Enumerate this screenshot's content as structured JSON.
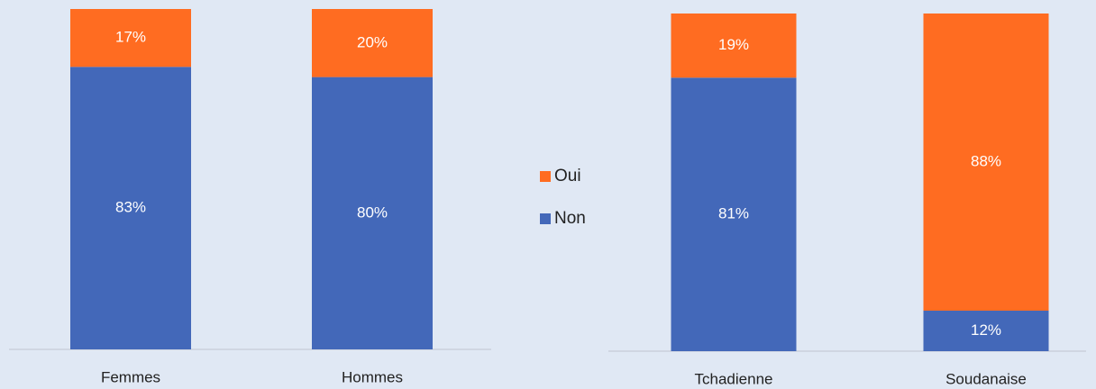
{
  "chart_data": [
    {
      "type": "bar",
      "stacked": true,
      "ylim": [
        0,
        100
      ],
      "legend": "right",
      "categories": [
        "Femmes",
        "Hommes"
      ],
      "series": [
        {
          "name": "Non",
          "color": "#4368b9",
          "values": [
            83,
            80
          ],
          "value_labels": [
            "83%",
            "80%"
          ]
        },
        {
          "name": "Oui",
          "color": "#ff6c21",
          "values": [
            17,
            20
          ],
          "value_labels": [
            "17%",
            "20%"
          ]
        }
      ]
    },
    {
      "type": "bar",
      "stacked": true,
      "ylim": [
        0,
        100
      ],
      "categories": [
        "Tchadienne",
        "Soudanaise"
      ],
      "series": [
        {
          "name": "Non",
          "color": "#4368b9",
          "values": [
            81,
            12
          ],
          "value_labels": [
            "81%",
            "12%"
          ]
        },
        {
          "name": "Oui",
          "color": "#ff6c21",
          "values": [
            19,
            88
          ],
          "value_labels": [
            "19%",
            "88%"
          ]
        }
      ]
    }
  ]
}
